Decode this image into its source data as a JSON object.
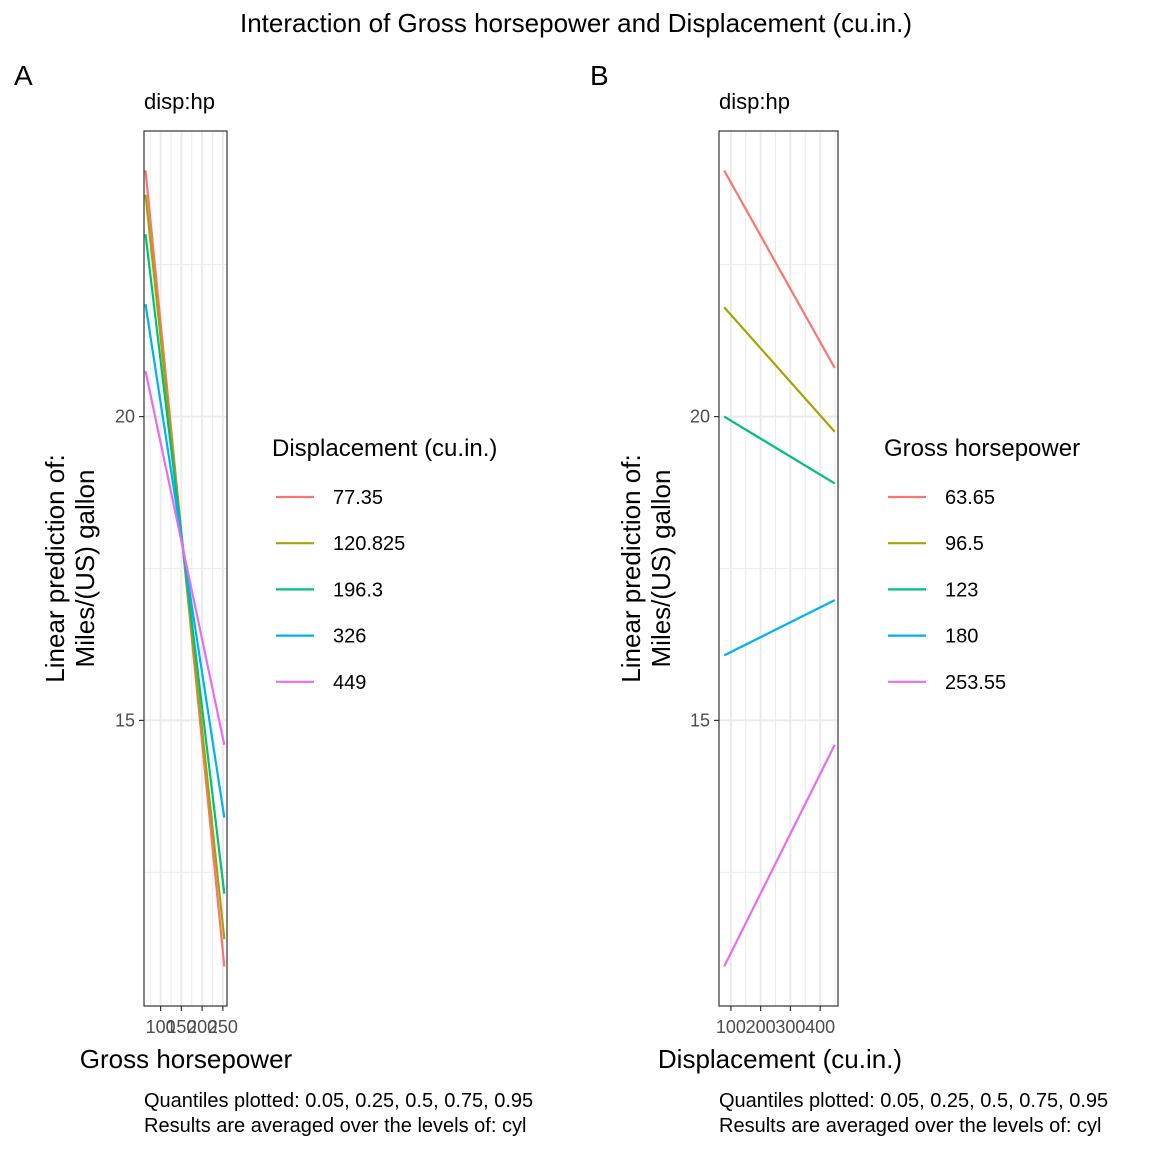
{
  "title": "Interaction of Gross horsepower and Displacement (cu.in.)",
  "chart_data": [
    {
      "type": "line",
      "tag": "A",
      "strip_label": "disp:hp",
      "xlabel": "Gross horsepower",
      "ylabel": [
        "Linear prediction of:",
        "Miles/(US) gallon"
      ],
      "xlim": [
        60,
        260
      ],
      "ylim": [
        10.3,
        24.7
      ],
      "x_ticks": [
        100,
        150,
        200,
        250
      ],
      "x_tick_labels": [
        "100",
        "150",
        "200",
        "250"
      ],
      "y_ticks": [
        15,
        20
      ],
      "y_tick_labels": [
        "15",
        "20"
      ],
      "legend_title": "Displacement (cu.in.)",
      "x": [
        63.65,
        253.55
      ],
      "series": [
        {
          "name": "77.35",
          "color": "#F8766D",
          "values": [
            24.05,
            10.95
          ]
        },
        {
          "name": "120.825",
          "color": "#A3A500",
          "values": [
            23.65,
            11.4
          ]
        },
        {
          "name": "196.3",
          "color": "#00BF7D",
          "values": [
            23.0,
            12.15
          ]
        },
        {
          "name": "326",
          "color": "#00B0F6",
          "values": [
            21.85,
            13.4
          ]
        },
        {
          "name": "449",
          "color": "#E76BF3",
          "values": [
            20.75,
            14.6
          ]
        }
      ],
      "caption": [
        "Quantiles plotted: 0.05, 0.25, 0.5, 0.75, 0.95",
        "Results are averaged over the levels of: cyl"
      ]
    },
    {
      "type": "line",
      "tag": "B",
      "strip_label": "disp:hp",
      "xlabel": "Displacement (cu.in.)",
      "ylabel": [
        "Linear prediction of:",
        "Miles/(US) gallon"
      ],
      "xlim": [
        60,
        460
      ],
      "ylim": [
        10.3,
        24.7
      ],
      "x_ticks": [
        100,
        200,
        300,
        400
      ],
      "x_tick_labels": [
        "100",
        "200",
        "300",
        "400"
      ],
      "y_ticks": [
        15,
        20
      ],
      "y_tick_labels": [
        "15",
        "20"
      ],
      "legend_title": "Gross horsepower",
      "x": [
        77.35,
        449
      ],
      "series": [
        {
          "name": "63.65",
          "color": "#F8766D",
          "values": [
            24.05,
            20.8
          ]
        },
        {
          "name": "96.5",
          "color": "#A3A500",
          "values": [
            21.8,
            19.75
          ]
        },
        {
          "name": "123",
          "color": "#00BF7D",
          "values": [
            20.0,
            18.9
          ]
        },
        {
          "name": "180",
          "color": "#00B0F6",
          "values": [
            16.07,
            16.98
          ]
        },
        {
          "name": "253.55",
          "color": "#E76BF3",
          "values": [
            10.95,
            14.6
          ]
        }
      ],
      "caption": [
        "Quantiles plotted: 0.05, 0.25, 0.5, 0.75, 0.95",
        "Results are averaged over the levels of: cyl"
      ]
    }
  ]
}
